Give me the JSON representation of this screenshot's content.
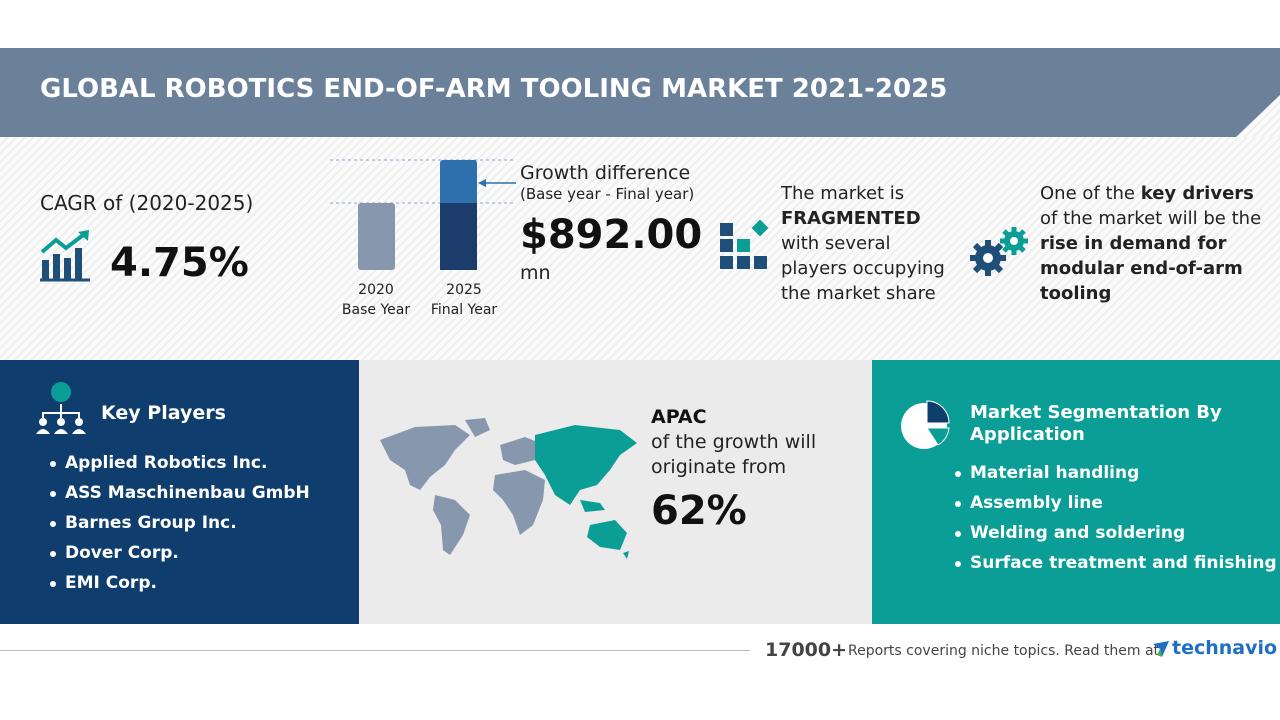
{
  "header": {
    "title": "GLOBAL ROBOTICS END-OF-ARM TOOLING MARKET 2021-2025"
  },
  "cagr": {
    "label": "CAGR of (2020-2025)",
    "value": "4.75%"
  },
  "growth": {
    "bars": [
      {
        "year": "2020",
        "label": "Base Year"
      },
      {
        "year": "2025",
        "label": "Final Year"
      }
    ],
    "title": "Growth difference",
    "subtitle": "(Base year - Final year)",
    "value": "$892.00",
    "unit": "mn"
  },
  "market_structure": {
    "lines": [
      [
        {
          "text": "The market is",
          "weight": "normal"
        }
      ],
      [
        {
          "text": "FRAGMENTED",
          "weight": "bold"
        }
      ],
      [
        {
          "text": "with several",
          "weight": "normal"
        }
      ],
      [
        {
          "text": "players occupying",
          "weight": "normal"
        }
      ],
      [
        {
          "text": "the market share",
          "weight": "normal"
        }
      ]
    ]
  },
  "drivers": {
    "lines": [
      [
        {
          "text": "One of the ",
          "weight": "normal"
        },
        {
          "text": "key drivers",
          "weight": "bold"
        }
      ],
      [
        {
          "text": "of the market will be the",
          "weight": "normal"
        }
      ],
      [
        {
          "text": "rise in demand for",
          "weight": "bold"
        }
      ],
      [
        {
          "text": "modular end-of-arm",
          "weight": "bold"
        }
      ],
      [
        {
          "text": "tooling",
          "weight": "bold"
        }
      ]
    ]
  },
  "key_players": {
    "title": "Key Players",
    "items": [
      "Applied Robotics Inc.",
      "ASS Maschinenbau GmbH",
      "Barnes Group Inc.",
      "Dover Corp.",
      "EMI Corp."
    ]
  },
  "region": {
    "name": "APAC",
    "lines": [
      "of the growth will",
      "originate from"
    ],
    "share": "62%"
  },
  "segmentation": {
    "title_lines": [
      "Market Segmentation By",
      "Application"
    ],
    "items": [
      "Material handling",
      "Assembly line",
      "Welding and soldering",
      "Surface treatment and finishing"
    ]
  },
  "footer": {
    "count": "17000+",
    "text": "Reports covering niche topics. Read them at",
    "logo": "technavio"
  }
}
